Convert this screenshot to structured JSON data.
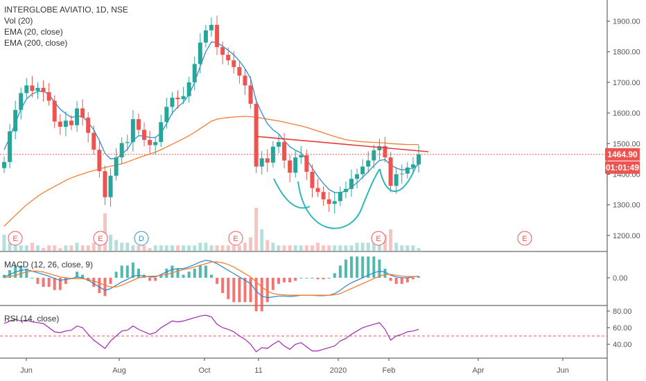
{
  "legend": {
    "title": "INTERGLOBE AVIATIO, 1D, NSE",
    "vol": "Vol (20)",
    "ema20": "EMA (20, close)",
    "ema200": "EMA (200, close)",
    "macd": "MACD (12, 26, close, 9)",
    "rsi": "RSI (14, close)"
  },
  "price_tag": {
    "price": "1464.90",
    "countdown": "01:01:49"
  },
  "colors": {
    "up": "#26a69a",
    "down": "#ef5350",
    "ema20": "#2f8bd0",
    "ema200": "#f57c2e",
    "trendline": "#e53935",
    "cup": "#2ab7b7",
    "rsi": "#9c27b0",
    "macd": "#2f8bd0",
    "signal": "#f57c2e"
  },
  "chart_data": {
    "type": "line",
    "y_ticks": [
      "1900.00",
      "1800.00",
      "1700.00",
      "1600.00",
      "1500.00",
      "1400.00",
      "1300.00",
      "1200.00"
    ],
    "price_range": [
      1150,
      1960
    ],
    "macd_ticks": [
      "0.00"
    ],
    "rsi_ticks": [
      "80.00",
      "60.00",
      "40.00"
    ],
    "rsi_range": [
      25,
      85
    ],
    "x_labels": [
      "Jun",
      "Aug",
      "Oct",
      "11",
      "2020",
      "Feb",
      "Apr",
      "Jun"
    ],
    "event_markers": [
      "E",
      "E",
      "D",
      "E",
      "E",
      "E"
    ],
    "close": [
      1440,
      1540,
      1610,
      1665,
      1690,
      1672,
      1682,
      1668,
      1640,
      1572,
      1555,
      1575,
      1560,
      1615,
      1585,
      1535,
      1480,
      1410,
      1325,
      1395,
      1455,
      1502,
      1505,
      1580,
      1545,
      1512,
      1495,
      1505,
      1570,
      1620,
      1650,
      1645,
      1655,
      1700,
      1760,
      1830,
      1870,
      1888,
      1815,
      1790,
      1772,
      1750,
      1722,
      1690,
      1630,
      1425,
      1452,
      1438,
      1490,
      1505,
      1445,
      1405,
      1455,
      1462,
      1408,
      1355,
      1342,
      1318,
      1303,
      1312,
      1342,
      1352,
      1385,
      1400,
      1425,
      1445,
      1478,
      1492,
      1455,
      1362,
      1400,
      1402,
      1422,
      1432,
      1465
    ],
    "ema20": [
      1480,
      1520,
      1568,
      1612,
      1646,
      1662,
      1670,
      1672,
      1660,
      1636,
      1612,
      1598,
      1585,
      1590,
      1588,
      1570,
      1545,
      1510,
      1468,
      1450,
      1452,
      1465,
      1482,
      1510,
      1526,
      1525,
      1520,
      1520,
      1535,
      1565,
      1600,
      1620,
      1635,
      1660,
      1700,
      1752,
      1800,
      1832,
      1830,
      1818,
      1805,
      1790,
      1770,
      1745,
      1712,
      1640,
      1600,
      1565,
      1545,
      1532,
      1510,
      1490,
      1478,
      1470,
      1448,
      1420,
      1393,
      1370,
      1350,
      1340,
      1340,
      1345,
      1358,
      1372,
      1390,
      1408,
      1428,
      1445,
      1448,
      1430,
      1420,
      1414,
      1416,
      1420,
      1432
    ],
    "ema200": [
      1230,
      1248,
      1266,
      1283,
      1300,
      1314,
      1328,
      1340,
      1350,
      1360,
      1370,
      1380,
      1388,
      1395,
      1401,
      1407,
      1412,
      1417,
      1422,
      1426,
      1430,
      1434,
      1440,
      1447,
      1454,
      1460,
      1466,
      1472,
      1480,
      1489,
      1498,
      1507,
      1516,
      1526,
      1537,
      1549,
      1561,
      1573,
      1580,
      1583,
      1585,
      1587,
      1588,
      1589,
      1588,
      1586,
      1583,
      1580,
      1577,
      1574,
      1570,
      1566,
      1562,
      1558,
      1553,
      1547,
      1541,
      1535,
      1529,
      1523,
      1518,
      1513,
      1510,
      1508,
      1506,
      1505,
      1504,
      1503,
      1502,
      1500,
      1499,
      1498,
      1497,
      1497,
      1497
    ],
    "rsi": [
      65,
      68,
      70,
      68,
      69,
      67,
      66,
      65,
      60,
      55,
      54,
      56,
      57,
      62,
      60,
      52,
      45,
      40,
      35,
      44,
      50,
      56,
      57,
      62,
      58,
      55,
      52,
      54,
      60,
      64,
      68,
      67,
      68,
      70,
      72,
      74,
      75,
      73,
      64,
      60,
      58,
      55,
      50,
      46,
      40,
      31,
      36,
      35,
      40,
      44,
      38,
      34,
      40,
      42,
      37,
      32,
      32,
      34,
      36,
      38,
      44,
      47,
      52,
      56,
      60,
      62,
      64,
      66,
      58,
      45,
      50,
      52,
      55,
      56,
      58
    ],
    "macd": [
      2,
      8,
      14,
      18,
      20,
      16,
      12,
      8,
      4,
      -2,
      -6,
      -4,
      -2,
      2,
      0,
      -6,
      -14,
      -22,
      -30,
      -26,
      -18,
      -10,
      -4,
      4,
      6,
      4,
      2,
      2,
      8,
      14,
      20,
      22,
      22,
      26,
      32,
      38,
      42,
      40,
      34,
      26,
      18,
      10,
      2,
      -6,
      -14,
      -32,
      -44,
      -48,
      -46,
      -44,
      -44,
      -45,
      -44,
      -42,
      -42,
      -42,
      -43,
      -43,
      -42,
      -38,
      -30,
      -20,
      -12,
      -6,
      0,
      6,
      12,
      16,
      14,
      6,
      2,
      0,
      0,
      2,
      4
    ],
    "signal": [
      0,
      3,
      6,
      10,
      14,
      16,
      16,
      14,
      10,
      6,
      2,
      0,
      -2,
      -2,
      -2,
      -4,
      -8,
      -12,
      -18,
      -22,
      -22,
      -18,
      -12,
      -6,
      0,
      2,
      4,
      4,
      6,
      8,
      12,
      16,
      20,
      22,
      26,
      30,
      34,
      38,
      38,
      36,
      32,
      26,
      18,
      10,
      2,
      -10,
      -22,
      -32,
      -38,
      -40,
      -41,
      -42,
      -42,
      -42,
      -42,
      -42,
      -42,
      -42,
      -42,
      -41,
      -38,
      -32,
      -26,
      -20,
      -14,
      -8,
      -2,
      4,
      8,
      8,
      6,
      4,
      3,
      3,
      3
    ],
    "volume": [
      6,
      3,
      2,
      2,
      2,
      3,
      2,
      1,
      2,
      2,
      1,
      2,
      2,
      3,
      2,
      2,
      3,
      5,
      14,
      6,
      4,
      3,
      3,
      2,
      2,
      2,
      1,
      2,
      2,
      2,
      2,
      2,
      2,
      2,
      2,
      3,
      3,
      2,
      2,
      2,
      2,
      2,
      2,
      3,
      5,
      16,
      8,
      4,
      3,
      2,
      2,
      2,
      2,
      2,
      2,
      2,
      3,
      2,
      2,
      2,
      2,
      2,
      2,
      3,
      3,
      3,
      3,
      4,
      6,
      8,
      3,
      2,
      2,
      2,
      1
    ]
  }
}
